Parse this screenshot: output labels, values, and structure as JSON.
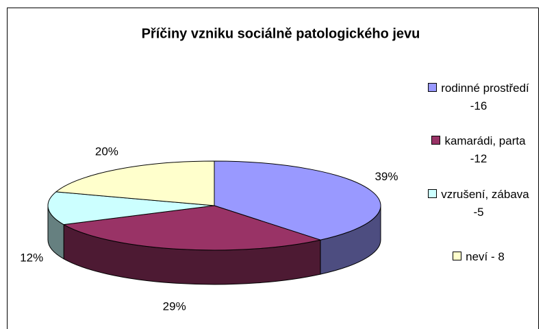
{
  "chart_data": {
    "type": "pie",
    "title": "Příčiny vzniku sociálně patologického jevu",
    "categories": [
      "rodinné prostředí -16",
      "kamarádi, parta -12",
      "vzrušení, zábava -5",
      "neví - 8"
    ],
    "values": [
      39,
      29,
      12,
      20
    ],
    "value_labels": [
      "39%",
      "29%",
      "12%",
      "20%"
    ],
    "colors": [
      "#9999ff",
      "#993366",
      "#ccffff",
      "#ffffcc"
    ],
    "legend": "right"
  }
}
